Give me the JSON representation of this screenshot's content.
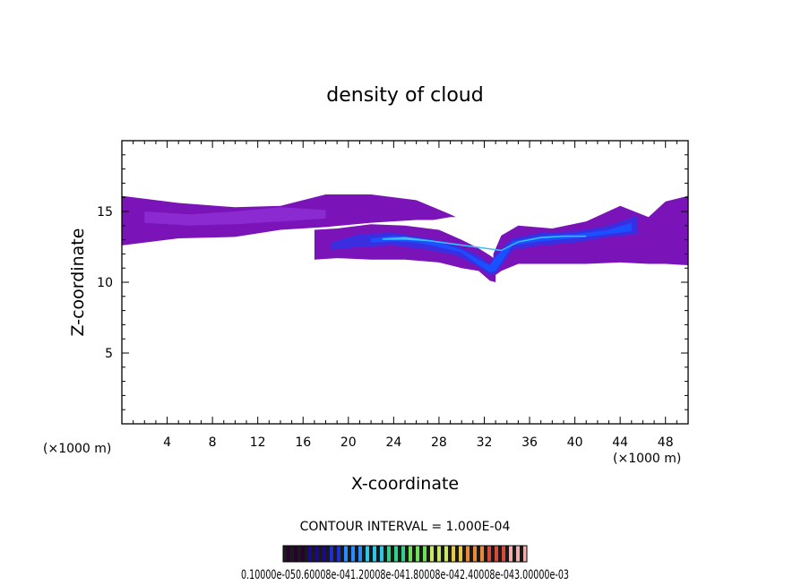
{
  "chart_data": {
    "type": "heatmap",
    "title": "density of cloud",
    "xlabel": "X-coordinate",
    "ylabel": "Z-coordinate",
    "x_unit_label": "(×1000 m)",
    "xlim": [
      0,
      50
    ],
    "ylim": [
      0,
      20
    ],
    "xticks": [
      4,
      8,
      12,
      16,
      20,
      24,
      28,
      32,
      36,
      40,
      44,
      48
    ],
    "yticks": [
      5,
      10,
      15
    ],
    "grid": false,
    "contour_interval_label": "CONTOUR INTERVAL = 1.000E-04",
    "colorbar_labels_text": "0.10000e-050.60008e-041.20008e-041.80008e-042.40008e-043.00000e-03",
    "colorbar_colors": [
      "#2a0030",
      "#1c0a8a",
      "#1e2fd8",
      "#2b8cff",
      "#2fc7e8",
      "#33d08a",
      "#6ee05a",
      "#c8e86a",
      "#e8c84a",
      "#e88a3a",
      "#d84a3a",
      "#f0b0b0"
    ],
    "fill_colors": {
      "base": "#7a14b8",
      "light": "#8a2ad0",
      "mid": "#3a2ee0",
      "strong": "#1a50ff",
      "core": "#3ac0ff"
    },
    "layers": [
      {
        "name": "upper-anvil",
        "level": "base",
        "x": [
          0,
          5,
          10,
          14,
          18,
          22,
          26,
          27.5,
          29,
          29.5
        ],
        "top": [
          16.1,
          15.6,
          15.3,
          15.4,
          16.2,
          16.2,
          15.8,
          15.3,
          14.8,
          14.6
        ],
        "bottom": [
          12.6,
          13.1,
          13.2,
          13.7,
          13.9,
          14.2,
          14.4,
          14.4,
          14.6,
          14.6
        ]
      },
      {
        "name": "lower-layer-left",
        "level": "base",
        "x": [
          17,
          19,
          22,
          25,
          28,
          30,
          31.5,
          32.5,
          33
        ],
        "top": [
          13.7,
          13.8,
          14.1,
          14.0,
          13.7,
          13.0,
          12.4,
          11.9,
          11.6
        ],
        "bottom": [
          11.6,
          11.7,
          11.6,
          11.6,
          11.4,
          11.0,
          10.8,
          10.1,
          10.0
        ]
      },
      {
        "name": "lower-layer-right",
        "level": "base",
        "x": [
          32.8,
          33.5,
          35,
          38,
          41,
          44,
          46.5,
          48,
          50
        ],
        "top": [
          12.0,
          13.3,
          14.0,
          13.8,
          14.3,
          15.4,
          14.6,
          15.7,
          16.1
        ],
        "bottom": [
          10.4,
          10.8,
          11.3,
          11.3,
          11.3,
          11.4,
          11.3,
          11.3,
          11.2
        ]
      },
      {
        "name": "upper-band-light",
        "level": "light",
        "x": [
          2,
          6,
          10,
          14,
          18
        ],
        "top": [
          15.0,
          14.8,
          15.0,
          15.3,
          15.1
        ],
        "bottom": [
          14.2,
          14.0,
          14.1,
          14.3,
          14.5
        ]
      },
      {
        "name": "band-mid",
        "level": "mid",
        "x": [
          18.5,
          21,
          24,
          27,
          29.5,
          31.5,
          32.5,
          33,
          34.5,
          37,
          40,
          43,
          45.5
        ],
        "top": [
          12.8,
          13.4,
          13.5,
          13.1,
          12.6,
          11.9,
          11.3,
          12.0,
          13.1,
          13.5,
          13.6,
          14.0,
          14.7
        ],
        "bottom": [
          12.3,
          12.5,
          12.6,
          12.3,
          11.9,
          11.1,
          10.5,
          10.6,
          12.3,
          12.6,
          12.8,
          13.2,
          13.4
        ]
      },
      {
        "name": "band-strong",
        "level": "strong",
        "x": [
          22,
          24,
          26,
          28,
          30,
          31.5,
          32.5,
          33,
          34.5,
          37,
          40,
          43,
          45
        ],
        "top": [
          13.1,
          13.3,
          13.1,
          12.8,
          12.3,
          11.6,
          11.2,
          11.8,
          12.9,
          13.3,
          13.4,
          13.7,
          14.2
        ],
        "bottom": [
          12.8,
          12.9,
          12.8,
          12.5,
          12.1,
          11.2,
          10.7,
          10.8,
          12.6,
          12.9,
          13.1,
          13.4,
          13.6
        ]
      },
      {
        "name": "band-core",
        "level": "core",
        "x": [
          23,
          25,
          27,
          33.5,
          35,
          37,
          39,
          41
        ],
        "top": [
          13.1,
          13.2,
          13.0,
          12.3,
          12.9,
          13.2,
          13.3,
          13.3
        ],
        "bottom": [
          13.0,
          13.0,
          12.9,
          12.2,
          12.8,
          13.1,
          13.2,
          13.2
        ]
      }
    ]
  }
}
